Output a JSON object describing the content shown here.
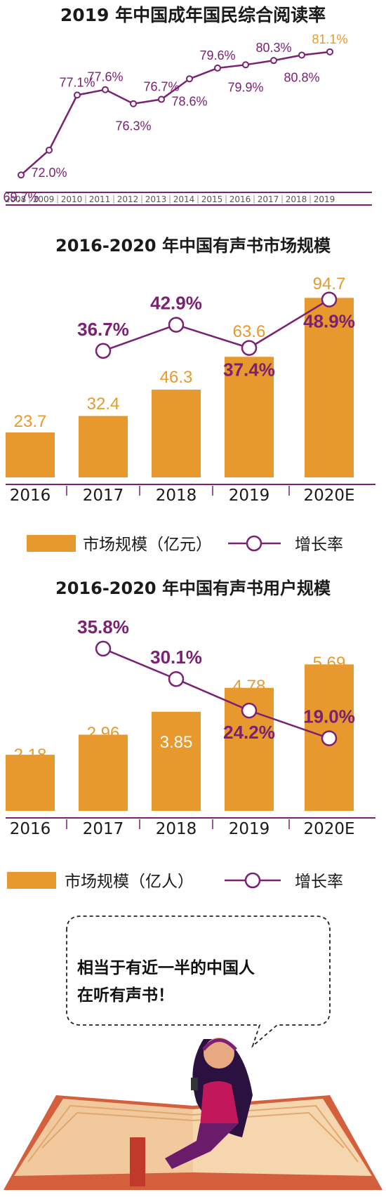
{
  "charts": [
    {
      "title": "2019 年中国成年国民综合阅读率"
    },
    {
      "title": "2016-2020 年中国有声书市场规模",
      "legend_bar": "市场规模（亿元）",
      "legend_line": "增长率"
    },
    {
      "title": "2016-2020 年中国有声书用户规模",
      "legend_bar": "市场规模（亿人）",
      "legend_line": "增长率"
    }
  ],
  "colors": {
    "orange": "#e8992e",
    "purple": "#7b2173",
    "text": "#1a1a1a"
  },
  "chart_data": [
    {
      "type": "line",
      "title": "2019 年中国成年国民综合阅读率",
      "x": [
        "2008",
        "2009",
        "2010",
        "2011",
        "2012",
        "2013",
        "2014",
        "2015",
        "2016",
        "2017",
        "2018",
        "2019"
      ],
      "values": [
        69.7,
        72.0,
        77.1,
        77.6,
        76.3,
        76.7,
        78.6,
        79.6,
        79.9,
        80.3,
        80.8,
        81.1
      ],
      "labels": [
        "69.7%",
        "72.0%",
        "77.1%",
        "77.6%",
        "76.3%",
        "76.7%",
        "78.6%",
        "79.6%",
        "79.9%",
        "80.3%",
        "80.8%",
        "81.1%"
      ],
      "ylim": [
        69,
        82
      ]
    },
    {
      "type": "bar",
      "title": "2016-2020 年中国有声书市场规模",
      "categories": [
        "2016",
        "2017",
        "2018",
        "2019",
        "2020E"
      ],
      "series": [
        {
          "name": "市场规模（亿元）",
          "values": [
            23.7,
            32.4,
            46.3,
            63.6,
            94.7
          ],
          "labels": [
            "23.7",
            "32.4",
            "46.3",
            "63.6",
            "94.7"
          ]
        },
        {
          "name": "增长率",
          "values": [
            null,
            36.7,
            42.9,
            37.4,
            48.9
          ],
          "labels": [
            "",
            "36.7%",
            "42.9%",
            "37.4%",
            "48.9%"
          ]
        }
      ],
      "ylim": [
        0,
        100
      ]
    },
    {
      "type": "bar",
      "title": "2016-2020 年中国有声书用户规模",
      "categories": [
        "2016",
        "2017",
        "2018",
        "2019",
        "2020E"
      ],
      "series": [
        {
          "name": "市场规模（亿人）",
          "values": [
            2.18,
            2.96,
            3.85,
            4.78,
            5.69
          ],
          "labels": [
            "2.18",
            "2.96",
            "3.85",
            "4.78",
            "5.69"
          ]
        },
        {
          "name": "增长率",
          "values": [
            null,
            35.8,
            30.1,
            24.2,
            19.0
          ],
          "labels": [
            "",
            "35.8%",
            "30.1%",
            "24.2%",
            "19.0%"
          ]
        }
      ],
      "ylim": [
        0,
        6
      ]
    }
  ],
  "callout": {
    "line1": "相当于有近一半的中国人",
    "line2": "在听有声书！"
  }
}
